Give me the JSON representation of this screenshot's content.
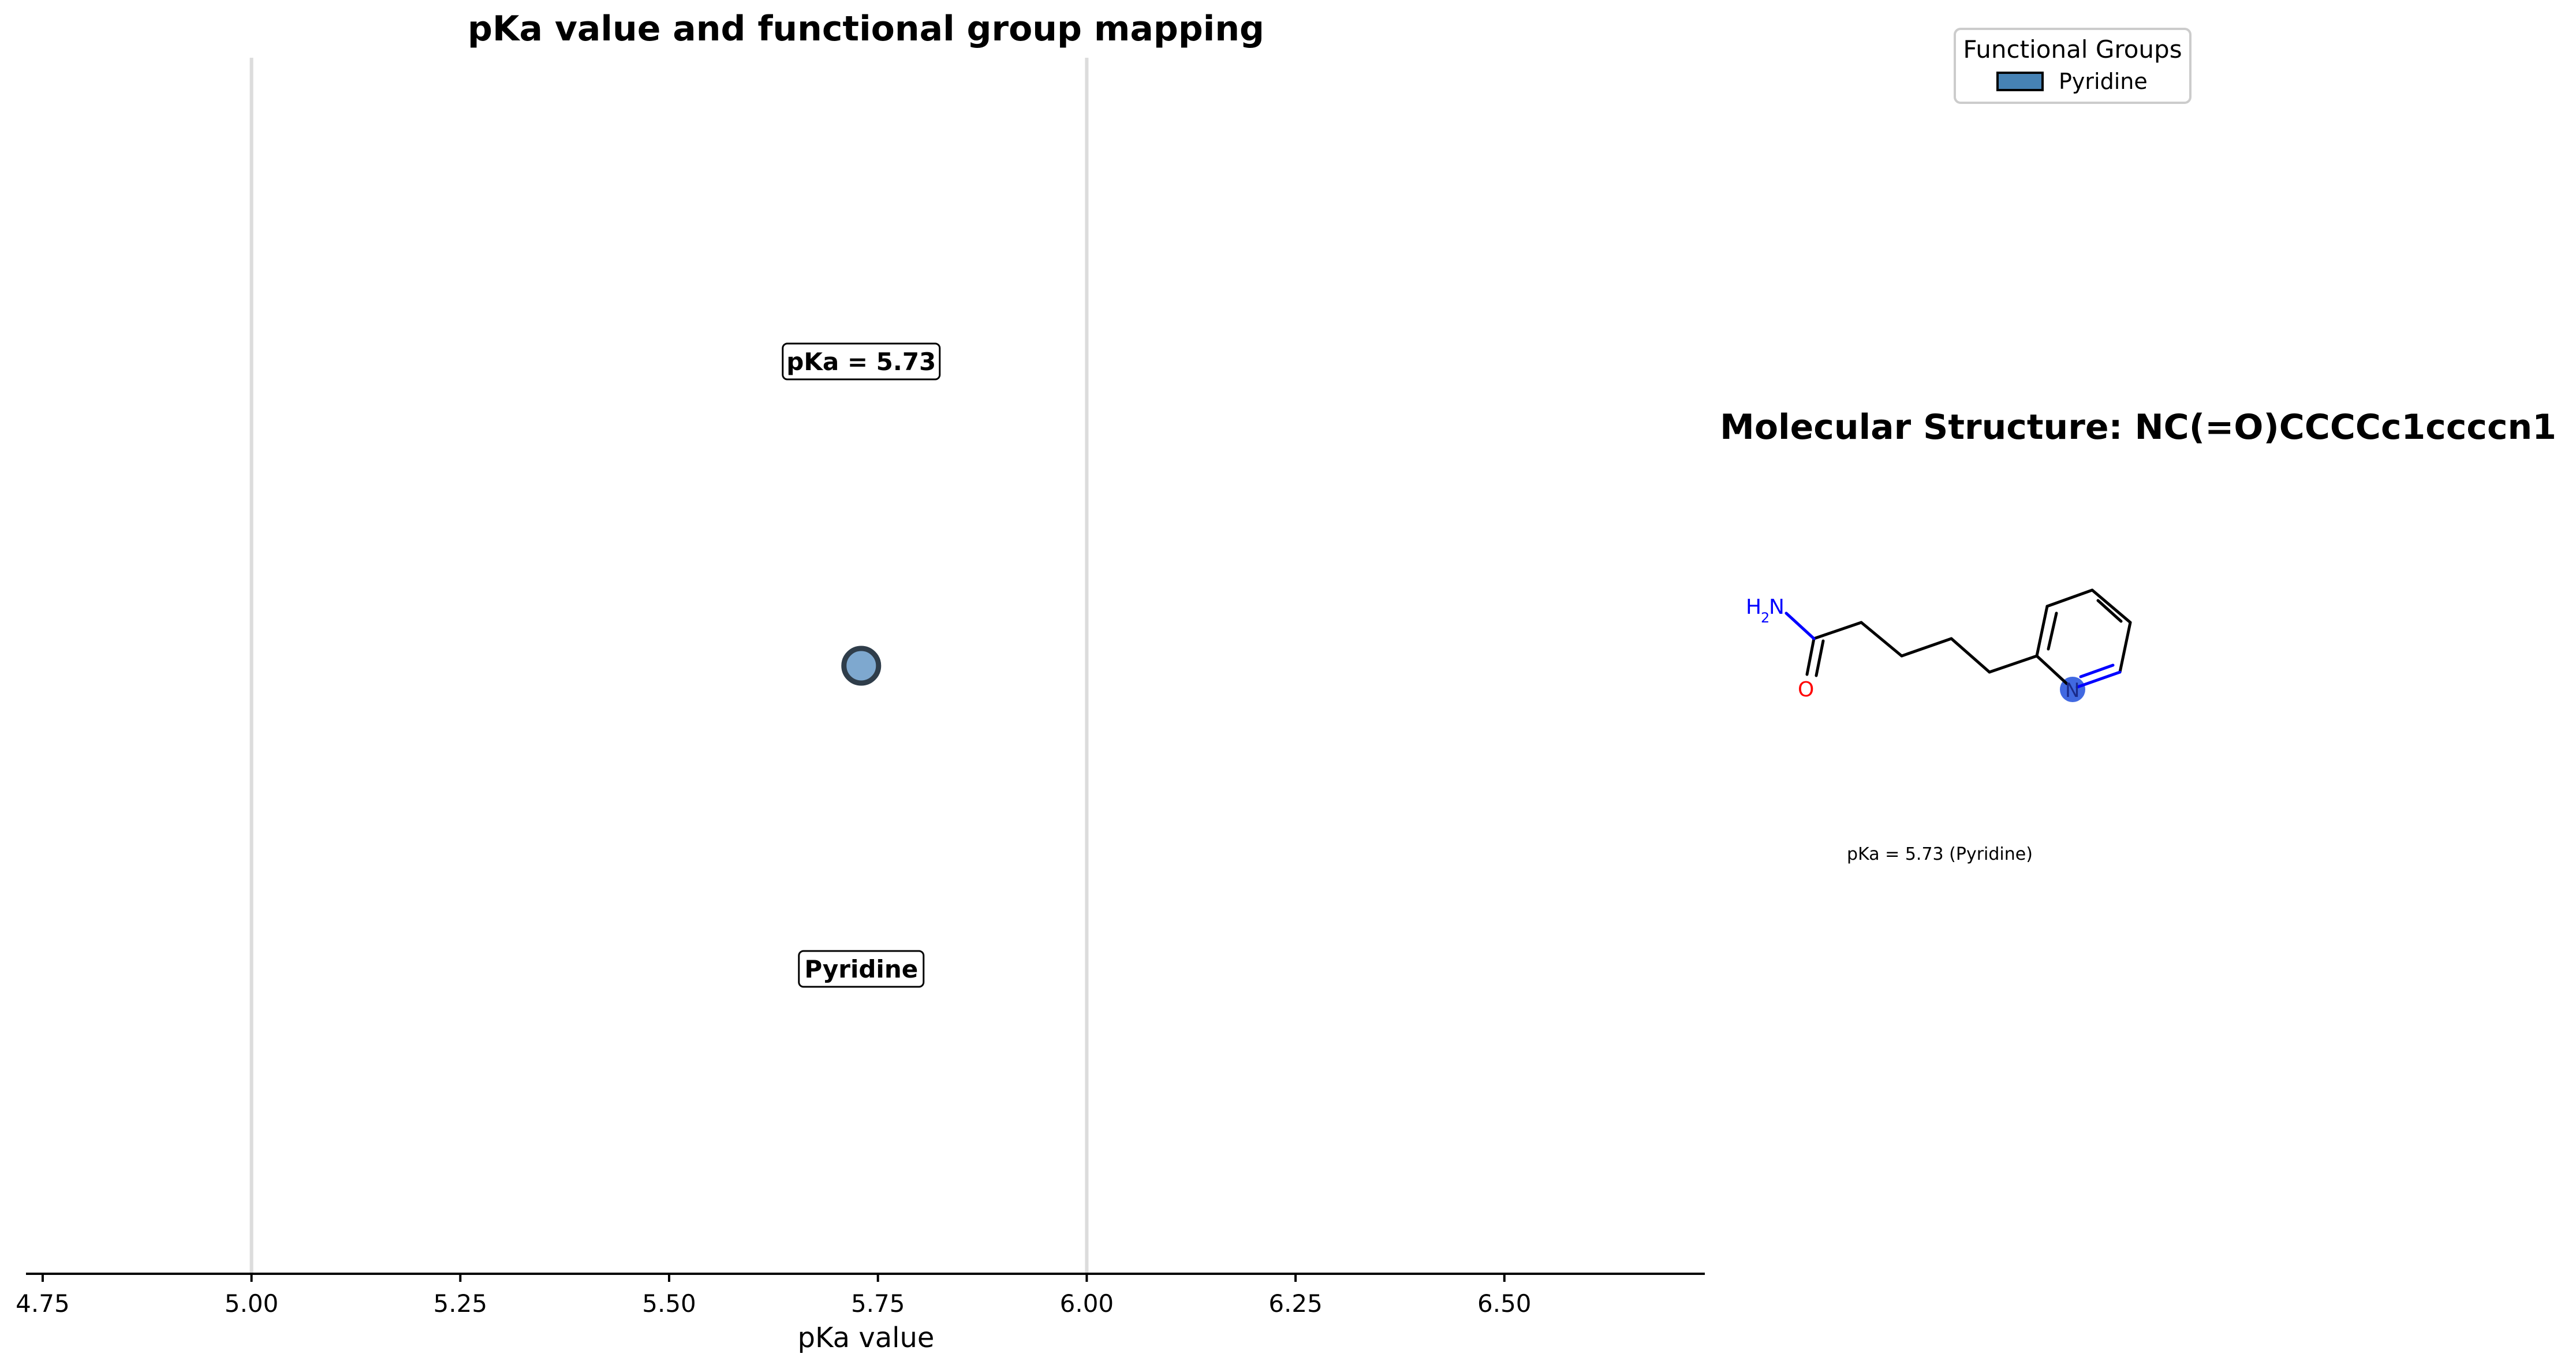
{
  "chart_data": {
    "type": "scatter",
    "title": "pKa value and functional group mapping",
    "xlabel": "pKa value",
    "ylabel": "",
    "xlim": [
      4.73,
      6.74
    ],
    "xticks": [
      4.75,
      5.0,
      5.25,
      5.5,
      5.75,
      6.0,
      6.25,
      6.5
    ],
    "xtick_labels": [
      "4.75",
      "5.00",
      "5.25",
      "5.50",
      "5.75",
      "6.00",
      "6.25",
      "6.50"
    ],
    "vlines": [
      5.0,
      6.0
    ],
    "grid": false,
    "points": [
      {
        "x": 5.73,
        "group": "Pyridine",
        "value_label": "pKa = 5.73",
        "group_label": "Pyridine"
      }
    ],
    "legend": {
      "title": "Functional Groups",
      "placement": "top-right",
      "entries": [
        {
          "label": "Pyridine",
          "color": "#4682b4"
        }
      ]
    }
  },
  "molecule": {
    "title": "Molecular Structure: NC(=O)CCCCc1ccccn1",
    "smiles": "NC(=O)CCCCc1ccccn1",
    "caption": "pKa = 5.73 (Pyridine)",
    "atom_labels": {
      "amine_n": "N",
      "amine_h": "H",
      "amine_sub": "2",
      "carbonyl_o": "O",
      "ring_n": "N"
    },
    "highlight_color": "#4169e1"
  },
  "colors": {
    "marker_fill": "#7ea8cf",
    "marker_edge": "#2f3d4a",
    "legend_patch": "#4682b4",
    "vline": "#dcdcdc",
    "nitrogen": "#0000ff",
    "oxygen": "#ff0000"
  }
}
